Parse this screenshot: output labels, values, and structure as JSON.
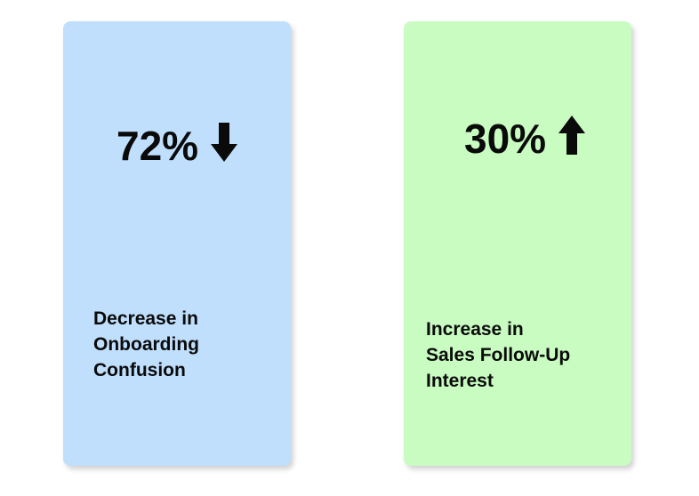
{
  "cards": [
    {
      "value": "72%",
      "direction_icon": "arrow-down-icon",
      "description_lines": [
        "Decrease in",
        "Onboarding",
        "Confusion"
      ],
      "background": "#bfdffd"
    },
    {
      "value": "30%",
      "direction_icon": "arrow-up-icon",
      "description_lines": [
        "Increase in",
        "Sales Follow-Up",
        "Interest"
      ],
      "background": "#c8fcc0"
    }
  ]
}
